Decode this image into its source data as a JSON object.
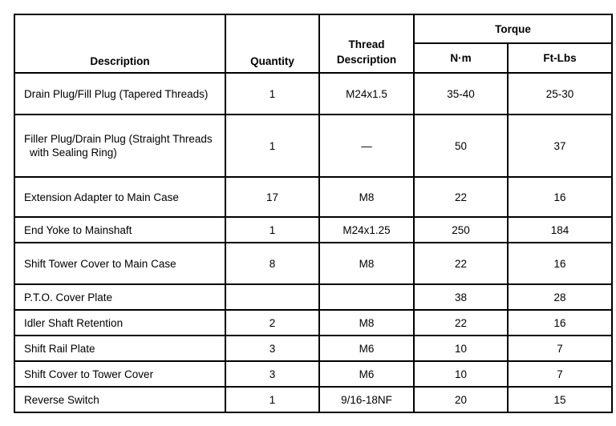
{
  "table": {
    "headers": {
      "description": "Description",
      "quantity": "Quantity",
      "thread": "Thread Description",
      "torque": "Torque",
      "nm": "N·m",
      "ftlbs": "Ft-Lbs"
    },
    "rows": [
      {
        "description": "Drain Plug/Fill Plug (Tapered Threads)",
        "quantity": "1",
        "thread": "M24x1.5",
        "nm": "35-40",
        "ftlbs": "25-30"
      },
      {
        "description": "Filler Plug/Drain Plug (Straight Threads with Sealing Ring)",
        "quantity": "1",
        "thread": "—",
        "nm": "50",
        "ftlbs": "37"
      },
      {
        "description": "Extension Adapter to Main Case",
        "quantity": "17",
        "thread": "M8",
        "nm": "22",
        "ftlbs": "16"
      },
      {
        "description": "End Yoke to Mainshaft",
        "quantity": "1",
        "thread": "M24x1.25",
        "nm": "250",
        "ftlbs": "184"
      },
      {
        "description": "Shift Tower Cover to Main Case",
        "quantity": "8",
        "thread": "M8",
        "nm": "22",
        "ftlbs": "16"
      },
      {
        "description": "P.T.O. Cover Plate",
        "quantity": "",
        "thread": "",
        "nm": "38",
        "ftlbs": "28"
      },
      {
        "description": "Idler Shaft Retention",
        "quantity": "2",
        "thread": "M8",
        "nm": "22",
        "ftlbs": "16"
      },
      {
        "description": "Shift Rail Plate",
        "quantity": "3",
        "thread": "M6",
        "nm": "10",
        "ftlbs": "7"
      },
      {
        "description": "Shift Cover to Tower Cover",
        "quantity": "3",
        "thread": "M6",
        "nm": "10",
        "ftlbs": "7"
      },
      {
        "description": "Reverse Switch",
        "quantity": "1",
        "thread": "9/16-18NF",
        "nm": "20",
        "ftlbs": "15"
      }
    ]
  }
}
